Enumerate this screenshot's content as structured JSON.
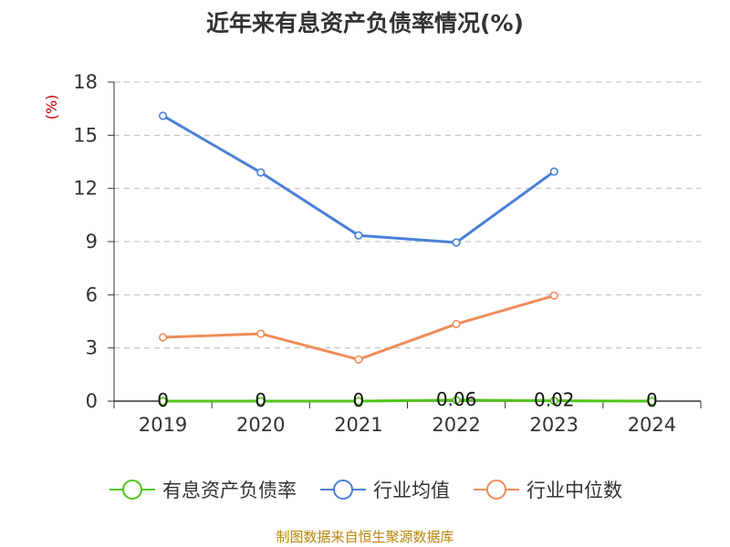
{
  "page": {
    "title": "近年来有息资产负债率情况(%)",
    "source_note": "制图数据来自恒生聚源数据库"
  },
  "colors": {
    "debt_ratio": "#52c41a",
    "industry_mean": "#4a7fd8",
    "industry_median": "#f08c5a",
    "grid": "#bbbbbb",
    "axis": "#333333",
    "unit": "#cc0000"
  },
  "chart_data": {
    "type": "line",
    "title": "近年来有息资产负债率情况(%)",
    "ylabel": "(%)",
    "xlabel": "",
    "categories": [
      "2019",
      "2020",
      "2021",
      "2022",
      "2023",
      "2024"
    ],
    "ylim": [
      0,
      18
    ],
    "yticks": [
      0,
      3,
      6,
      9,
      12,
      15,
      18
    ],
    "grid": true,
    "legend_position": "bottom",
    "series": [
      {
        "name": "有息资产负债率",
        "color_key": "debt_ratio",
        "values": [
          0,
          0,
          0,
          0.06,
          0.02,
          0
        ],
        "data_labels": [
          "0",
          "0",
          "0",
          "0.06",
          "0.02",
          "0"
        ]
      },
      {
        "name": "行业均值",
        "color_key": "industry_mean",
        "values": [
          16.1,
          12.9,
          9.35,
          8.95,
          12.95,
          null
        ]
      },
      {
        "name": "行业中位数",
        "color_key": "industry_median",
        "values": [
          3.6,
          3.8,
          2.35,
          4.35,
          5.95,
          null
        ]
      }
    ]
  }
}
